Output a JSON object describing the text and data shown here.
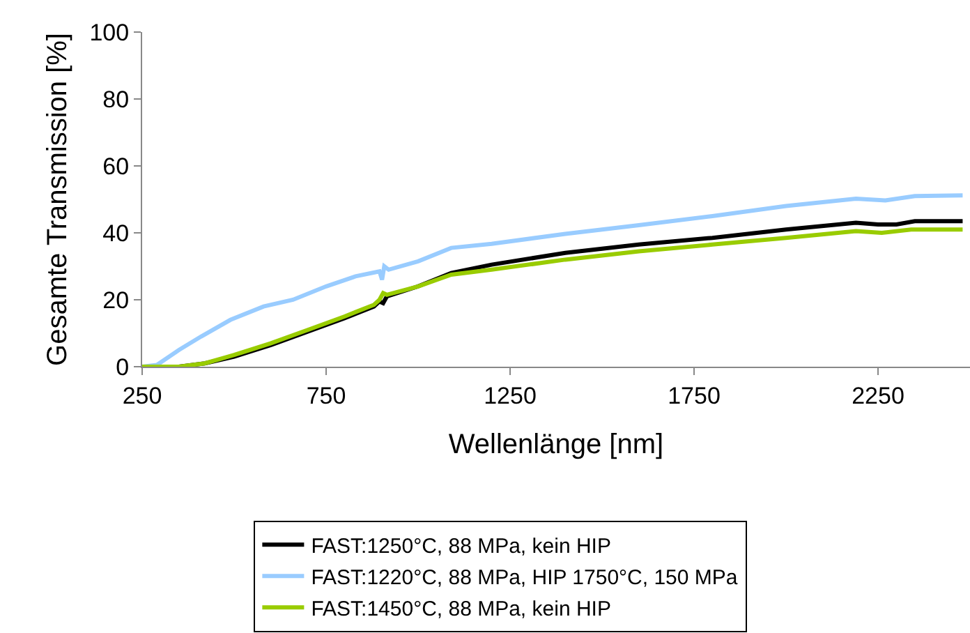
{
  "chart_data": {
    "type": "line",
    "xlabel": "Wellenlänge [nm]",
    "ylabel": "Gesamte Transmission [%]",
    "xlim": [
      250,
      2500
    ],
    "xticks": [
      250,
      750,
      1250,
      1750,
      2250
    ],
    "ylim": [
      0,
      100
    ],
    "yticks": [
      0,
      20,
      40,
      60,
      80,
      100
    ],
    "grid": false,
    "legend": "bottom",
    "series": [
      {
        "name": "FAST:1250°C, 88 MPa, kein HIP",
        "color": "#000000",
        "x": [
          250,
          350,
          420,
          500,
          600,
          700,
          800,
          880,
          895,
          905,
          915,
          1000,
          1090,
          1200,
          1400,
          1600,
          1800,
          2000,
          2190,
          2250,
          2300,
          2350,
          2480
        ],
        "values": [
          0,
          0,
          1,
          3,
          6.5,
          10.5,
          14.5,
          18,
          19.5,
          19,
          21,
          24,
          28,
          30.5,
          34,
          36.5,
          38.5,
          41,
          43,
          42.5,
          42.5,
          43.5,
          43.5
        ]
      },
      {
        "name": "FAST:1220°C, 88 MPa, HIP 1750°C, 150 MPa",
        "color": "#99ccff",
        "x": [
          250,
          290,
          350,
          410,
          490,
          580,
          660,
          750,
          830,
          895,
          902,
          908,
          920,
          1000,
          1090,
          1200,
          1400,
          1600,
          1800,
          2000,
          2190,
          2270,
          2350,
          2480
        ],
        "values": [
          0,
          0.5,
          5,
          9,
          14,
          18,
          20,
          24,
          27,
          28.5,
          26,
          30,
          29,
          31.5,
          35.5,
          36.7,
          39.7,
          42.3,
          45,
          48,
          50.2,
          49.7,
          51,
          51.2
        ]
      },
      {
        "name": "FAST:1450°C, 88 MPa, kein HIP",
        "color": "#99cc00",
        "x": [
          250,
          350,
          420,
          500,
          600,
          700,
          800,
          880,
          895,
          905,
          915,
          1000,
          1090,
          1200,
          1400,
          1600,
          1800,
          2000,
          2190,
          2260,
          2340,
          2480
        ],
        "values": [
          0,
          0,
          1,
          3.5,
          7,
          11,
          15,
          18.5,
          20,
          22,
          21.5,
          24,
          27.5,
          29,
          32,
          34.5,
          36.5,
          38.5,
          40.5,
          40,
          41,
          41
        ]
      }
    ]
  }
}
